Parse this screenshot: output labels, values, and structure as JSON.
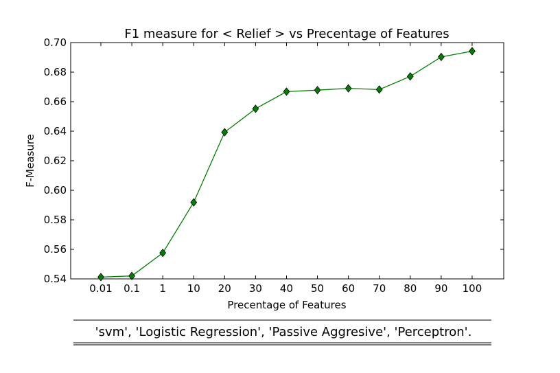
{
  "chart_data": {
    "type": "line",
    "title": "F1 measure for < Relief > vs Precentage of Features",
    "xlabel": "Precentage of Features",
    "ylabel": "F-Measure",
    "categories": [
      "0.01",
      "0.1",
      "1",
      "10",
      "20",
      "30",
      "40",
      "50",
      "60",
      "70",
      "80",
      "90",
      "100"
    ],
    "ylim": [
      0.54,
      0.7
    ],
    "yticks": [
      "0.54",
      "0.56",
      "0.58",
      "0.60",
      "0.62",
      "0.64",
      "0.66",
      "0.68",
      "0.70"
    ],
    "series": [
      {
        "values": [
          0.5412,
          0.542,
          0.5576,
          0.5918,
          0.6393,
          0.6552,
          0.6668,
          0.6678,
          0.669,
          0.6682,
          0.6771,
          0.6903,
          0.6942
        ],
        "color": "#008000",
        "marker": "diamond",
        "marker_color": "#008000"
      }
    ],
    "grid": false,
    "caption": "'svm', 'Logistic Regression', 'Passive Aggresive', 'Perceptron'."
  }
}
